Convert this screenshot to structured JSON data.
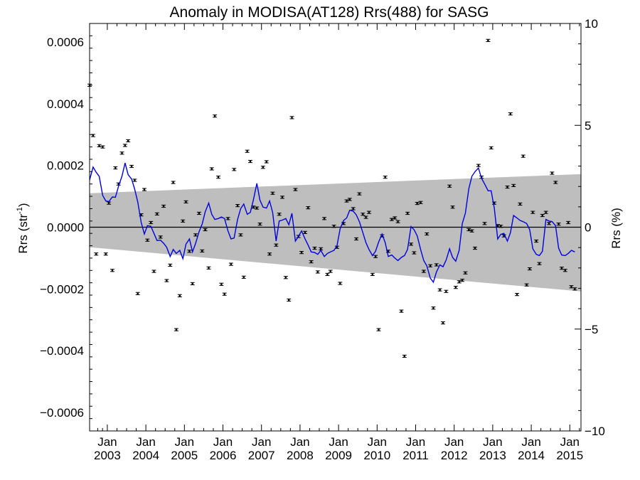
{
  "chart_data": {
    "type": "scatter",
    "title": "Anomaly in MODISA(AT128) Rrs(488) for SASG",
    "ylabel_left": "Rrs (str",
    "ylabel_left_sup": "-1",
    "ylabel_left_end": ")",
    "ylabel_right": "Rrs (%)",
    "x_tick_labels": [
      {
        "month": "Jan",
        "year": "2003",
        "t": 2003.0
      },
      {
        "month": "Jan",
        "year": "2004",
        "t": 2004.0
      },
      {
        "month": "Jan",
        "year": "2005",
        "t": 2005.0
      },
      {
        "month": "Jan",
        "year": "2006",
        "t": 2006.0
      },
      {
        "month": "Jan",
        "year": "2007",
        "t": 2007.0
      },
      {
        "month": "Jan",
        "year": "2008",
        "t": 2008.0
      },
      {
        "month": "Jan",
        "year": "2009",
        "t": 2009.0
      },
      {
        "month": "Jan",
        "year": "2010",
        "t": 2010.0
      },
      {
        "month": "Jan",
        "year": "2011",
        "t": 2011.0
      },
      {
        "month": "Jan",
        "year": "2012",
        "t": 2012.0
      },
      {
        "month": "Jan",
        "year": "2013",
        "t": 2013.0
      },
      {
        "month": "Jan",
        "year": "2014",
        "t": 2014.0
      },
      {
        "month": "Jan",
        "year": "2015",
        "t": 2015.0
      }
    ],
    "xlim": [
      2002.54,
      2015.29
    ],
    "ylim_left": [
      -0.00066,
      0.00066
    ],
    "ylim_right": [
      -10,
      10
    ],
    "y_ticks_left": [
      "0.0006",
      "0.0004",
      "0.0002",
      "0.0000",
      "−0.0002",
      "−0.0004",
      "−0.0006"
    ],
    "y_tick_values_left": [
      0.0006,
      0.0004,
      0.0002,
      0.0,
      -0.0002,
      -0.0004,
      -0.0006
    ],
    "y_ticks_right": [
      "10",
      "5",
      "0",
      "−5",
      "−10"
    ],
    "y_tick_values_right": [
      10,
      5,
      0,
      -5,
      -10
    ],
    "band": {
      "start": [
        2002.54,
        0.00011
      ],
      "end": [
        2015.29,
        0.000172
      ],
      "start_low": [
        2002.54,
        -6.5e-05
      ],
      "end_low": [
        2015.29,
        -0.000208
      ]
    },
    "colors": {
      "band": "#bebebe",
      "line": "#0000dd",
      "points": "#000000"
    },
    "points": [
      [
        2002.54,
        0.00046
      ],
      [
        2002.63,
        0.000297
      ],
      [
        2002.71,
        -8.7e-05
      ],
      [
        2002.79,
        0.000264
      ],
      [
        2002.88,
        0.00026
      ],
      [
        2002.96,
        -8.7e-05
      ],
      [
        2003.04,
        7.8e-05
      ],
      [
        2003.13,
        -0.00014
      ],
      [
        2003.21,
        0.000192
      ],
      [
        2003.29,
        0.00014
      ],
      [
        2003.38,
        0.00024
      ],
      [
        2003.46,
        0.000265
      ],
      [
        2003.54,
        0.00028
      ],
      [
        2003.63,
        0.000197
      ],
      [
        2003.71,
        0.000152
      ],
      [
        2003.79,
        -0.000215
      ],
      [
        2003.88,
        4e-05
      ],
      [
        2003.96,
        0.000122
      ],
      [
        2004.04,
        -4.2e-05
      ],
      [
        2004.13,
        1.5e-05
      ],
      [
        2004.21,
        -0.000143
      ],
      [
        2004.29,
        4.3e-05
      ],
      [
        2004.38,
        -3.2e-05
      ],
      [
        2004.46,
        6.8e-05
      ],
      [
        2004.54,
        -0.000173
      ],
      [
        2004.63,
        -0.000123
      ],
      [
        2004.71,
        0.000145
      ],
      [
        2004.79,
        -0.000332
      ],
      [
        2004.88,
        -0.000222
      ],
      [
        2004.96,
        2e-05
      ],
      [
        2005.04,
        8.2e-05
      ],
      [
        2005.13,
        -7.8e-05
      ],
      [
        2005.21,
        -0.000183
      ],
      [
        2005.29,
        -2.5e-05
      ],
      [
        2005.38,
        4.5e-05
      ],
      [
        2005.46,
        -7.7e-05
      ],
      [
        2005.54,
        -8e-06
      ],
      [
        2005.63,
        -0.000132
      ],
      [
        2005.71,
        0.000189
      ],
      [
        2005.79,
        0.00036
      ],
      [
        2005.88,
        0.000162
      ],
      [
        2005.96,
        -0.000185
      ],
      [
        2006.04,
        -0.000217
      ],
      [
        2006.13,
        2.8e-05
      ],
      [
        2006.21,
        -0.00012
      ],
      [
        2006.29,
        0.000187
      ],
      [
        2006.38,
        7e-05
      ],
      [
        2006.46,
        -2.5e-05
      ],
      [
        2006.54,
        -0.000162
      ],
      [
        2006.63,
        0.000246
      ],
      [
        2006.71,
        0.000213
      ],
      [
        2006.79,
        6.5e-05
      ],
      [
        2006.88,
        6.2e-05
      ],
      [
        2006.96,
        1e-05
      ],
      [
        2007.04,
        0.000194
      ],
      [
        2007.13,
        0.000212
      ],
      [
        2007.21,
        -8.7e-05
      ],
      [
        2007.29,
        0.00011
      ],
      [
        2007.38,
        -5.8e-05
      ],
      [
        2007.46,
        4.2e-05
      ],
      [
        2007.54,
        9.7e-05
      ],
      [
        2007.63,
        -0.000163
      ],
      [
        2007.71,
        -0.000236
      ],
      [
        2007.79,
        0.000355
      ],
      [
        2007.88,
        0.000122
      ],
      [
        2007.96,
        -3e-05
      ],
      [
        2008.04,
        -8.2e-05
      ],
      [
        2008.13,
        -1.7e-05
      ],
      [
        2008.21,
        6.3e-05
      ],
      [
        2008.29,
        -0.000112
      ],
      [
        2008.38,
        -6.8e-05
      ],
      [
        2008.46,
        -0.000145
      ],
      [
        2008.54,
        -7e-05
      ],
      [
        2008.63,
        2.8e-05
      ],
      [
        2008.71,
        -0.000153
      ],
      [
        2008.79,
        -0.000143
      ],
      [
        2008.88,
        3e-06
      ],
      [
        2008.96,
        -6.5e-05
      ],
      [
        2009.04,
        -0.000182
      ],
      [
        2009.13,
        1.2e-05
      ],
      [
        2009.21,
        8.5e-05
      ],
      [
        2009.29,
        9e-05
      ],
      [
        2009.38,
        6e-05
      ],
      [
        2009.46,
        -3.8e-05
      ],
      [
        2009.54,
        0.000108
      ],
      [
        2009.63,
        4.2e-05
      ],
      [
        2009.71,
        3.2e-05
      ],
      [
        2009.79,
        4.8e-05
      ],
      [
        2009.88,
        -0.000153
      ],
      [
        2009.96,
        -9.5e-05
      ],
      [
        2010.04,
        -0.000332
      ],
      [
        2010.13,
        -2.8e-05
      ],
      [
        2010.21,
        0.000162
      ],
      [
        2010.29,
        -7.8e-05
      ],
      [
        2010.38,
        2.5e-05
      ],
      [
        2010.46,
        3e-05
      ],
      [
        2010.54,
        1.8e-05
      ],
      [
        2010.63,
        -0.000272
      ],
      [
        2010.71,
        -0.000418
      ],
      [
        2010.79,
        4.5e-05
      ],
      [
        2010.88,
        -5.5e-05
      ],
      [
        2010.96,
        -8.3e-05
      ],
      [
        2011.04,
        7.7e-05
      ],
      [
        2011.13,
        8e-05
      ],
      [
        2011.21,
        -0.000143
      ],
      [
        2011.29,
        -2.2e-05
      ],
      [
        2011.38,
        -0.000125
      ],
      [
        2011.46,
        -0.000262
      ],
      [
        2011.54,
        -0.000122
      ],
      [
        2011.63,
        -0.000203
      ],
      [
        2011.71,
        -0.00031
      ],
      [
        2011.79,
        -0.000208
      ],
      [
        2011.88,
        0.000133
      ],
      [
        2011.96,
        6.5e-05
      ],
      [
        2012.04,
        -0.000195
      ],
      [
        2012.13,
        -0.000177
      ],
      [
        2012.21,
        -0.000172
      ],
      [
        2012.29,
        -0.000148
      ],
      [
        2012.38,
        -8e-06
      ],
      [
        2012.46,
        -1.2e-05
      ],
      [
        2012.54,
        -6.8e-05
      ],
      [
        2012.63,
        0.0002
      ],
      [
        2012.71,
        0.000162
      ],
      [
        2012.79,
        1.2e-05
      ],
      [
        2012.88,
        0.000605
      ],
      [
        2012.96,
        0.000257
      ],
      [
        2013.04,
        7.8e-05
      ],
      [
        2013.13,
        5e-06
      ],
      [
        2013.21,
        3e-06
      ],
      [
        2013.29,
        -2.8e-05
      ],
      [
        2013.38,
        0.00013
      ],
      [
        2013.46,
        0.000367
      ],
      [
        2013.54,
        0.000135
      ],
      [
        2013.63,
        -0.000218
      ],
      [
        2013.71,
        7.5e-05
      ],
      [
        2013.79,
        0.00023
      ],
      [
        2013.88,
        -0.000187
      ],
      [
        2013.96,
        -0.000135
      ],
      [
        2014.04,
        4.8e-05
      ],
      [
        2014.13,
        -4.5e-05
      ],
      [
        2014.21,
        -0.000118
      ],
      [
        2014.29,
        3.8e-05
      ],
      [
        2014.38,
        4.8e-05
      ],
      [
        2014.46,
        1.2e-05
      ],
      [
        2014.54,
        0.000175
      ],
      [
        2014.63,
        0.000145
      ],
      [
        2014.71,
        1e-05
      ],
      [
        2014.79,
        -0.000133
      ],
      [
        2014.88,
        -0.00014
      ],
      [
        2014.96,
        1.5e-05
      ],
      [
        2015.04,
        -0.000193
      ],
      [
        2015.13,
        -0.0002
      ]
    ],
    "line": [
      [
        2002.54,
        0.000153
      ],
      [
        2002.63,
        0.000195
      ],
      [
        2002.71,
        0.000178
      ],
      [
        2002.79,
        0.000165
      ],
      [
        2002.88,
        0.000103
      ],
      [
        2002.96,
        8.5e-05
      ],
      [
        2003.04,
        8.3e-05
      ],
      [
        2003.13,
        9.8e-05
      ],
      [
        2003.21,
        9.7e-05
      ],
      [
        2003.29,
        0.000132
      ],
      [
        2003.38,
        0.000165
      ],
      [
        2003.46,
        0.000208
      ],
      [
        2003.54,
        0.00017
      ],
      [
        2003.63,
        0.000156
      ],
      [
        2003.71,
        0.000123
      ],
      [
        2003.79,
        8.2e-05
      ],
      [
        2003.88,
        1.5e-05
      ],
      [
        2003.96,
        -2.2e-05
      ],
      [
        2004.04,
        5e-06
      ],
      [
        2004.13,
        3e-06
      ],
      [
        2004.21,
        -2e-05
      ],
      [
        2004.29,
        -4.3e-05
      ],
      [
        2004.38,
        -4.2e-05
      ],
      [
        2004.46,
        -5.2e-05
      ],
      [
        2004.54,
        -6.5e-05
      ],
      [
        2004.63,
        -9.5e-05
      ],
      [
        2004.71,
        -7.2e-05
      ],
      [
        2004.79,
        -8.5e-05
      ],
      [
        2004.88,
        -7.5e-05
      ],
      [
        2004.96,
        -0.000102
      ],
      [
        2005.04,
        -5.5e-05
      ],
      [
        2005.13,
        -3.8e-05
      ],
      [
        2005.21,
        -8e-05
      ],
      [
        2005.29,
        -5.3e-05
      ],
      [
        2005.38,
        -1.5e-05
      ],
      [
        2005.46,
        1e-05
      ],
      [
        2005.54,
        5e-05
      ],
      [
        2005.63,
        7.8e-05
      ],
      [
        2005.71,
        4.2e-05
      ],
      [
        2005.79,
        2.5e-05
      ],
      [
        2005.88,
        2.8e-05
      ],
      [
        2005.96,
        3.3e-05
      ],
      [
        2006.04,
        2.8e-05
      ],
      [
        2006.13,
        -1.2e-05
      ],
      [
        2006.21,
        -3.8e-05
      ],
      [
        2006.29,
        -3.5e-05
      ],
      [
        2006.38,
        2.5e-05
      ],
      [
        2006.46,
        6e-05
      ],
      [
        2006.54,
        7.5e-05
      ],
      [
        2006.63,
        4.2e-05
      ],
      [
        2006.71,
        4.8e-05
      ],
      [
        2006.79,
        8.8e-05
      ],
      [
        2006.88,
        0.000142
      ],
      [
        2006.96,
        8.8e-05
      ],
      [
        2007.04,
        6.5e-05
      ],
      [
        2007.13,
        6.2e-05
      ],
      [
        2007.21,
        8.5e-05
      ],
      [
        2007.29,
        4.8e-05
      ],
      [
        2007.38,
        -4.5e-05
      ],
      [
        2007.46,
        2e-05
      ],
      [
        2007.54,
        2.3e-05
      ],
      [
        2007.63,
        2.8e-05
      ],
      [
        2007.71,
        8e-06
      ],
      [
        2007.79,
        4.5e-05
      ],
      [
        2007.88,
        -4.5e-05
      ],
      [
        2007.96,
        -3e-05
      ],
      [
        2008.04,
        -1.2e-05
      ],
      [
        2008.13,
        -3.8e-05
      ],
      [
        2008.21,
        -5.8e-05
      ],
      [
        2008.29,
        -8e-05
      ],
      [
        2008.38,
        -8.2e-05
      ],
      [
        2008.46,
        -8.8e-05
      ],
      [
        2008.54,
        -7.5e-05
      ],
      [
        2008.63,
        -9.5e-05
      ],
      [
        2008.71,
        -8.5e-05
      ],
      [
        2008.79,
        -8e-05
      ],
      [
        2008.88,
        -7.5e-05
      ],
      [
        2008.96,
        -6e-05
      ],
      [
        2009.04,
        -5e-06
      ],
      [
        2009.13,
        2.2e-05
      ],
      [
        2009.21,
        3e-05
      ],
      [
        2009.29,
        5.5e-05
      ],
      [
        2009.38,
        5.2e-05
      ],
      [
        2009.46,
        4e-05
      ],
      [
        2009.54,
        1.8e-05
      ],
      [
        2009.63,
        -1.8e-05
      ],
      [
        2009.71,
        -5e-05
      ],
      [
        2009.79,
        -7.2e-05
      ],
      [
        2009.88,
        -9.2e-05
      ],
      [
        2009.96,
        -7.8e-05
      ],
      [
        2010.04,
        -4.8e-05
      ],
      [
        2010.13,
        -2.2e-05
      ],
      [
        2010.21,
        -5e-05
      ],
      [
        2010.29,
        -9.5e-05
      ],
      [
        2010.38,
        -9e-05
      ],
      [
        2010.46,
        -0.0001
      ],
      [
        2010.54,
        -0.000108
      ],
      [
        2010.63,
        -9.8e-05
      ],
      [
        2010.71,
        -9.2e-05
      ],
      [
        2010.79,
        -7.2e-05
      ],
      [
        2010.88,
        2e-06
      ],
      [
        2010.96,
        -8e-06
      ],
      [
        2011.04,
        -2.8e-05
      ],
      [
        2011.13,
        -7.2e-05
      ],
      [
        2011.21,
        -0.000108
      ],
      [
        2011.29,
        -0.000125
      ],
      [
        2011.38,
        -0.000165
      ],
      [
        2011.46,
        -0.000178
      ],
      [
        2011.54,
        -0.000145
      ],
      [
        2011.63,
        -0.000122
      ],
      [
        2011.71,
        -0.000128
      ],
      [
        2011.79,
        -0.000107
      ],
      [
        2011.88,
        -7e-05
      ],
      [
        2011.96,
        -9.8e-05
      ],
      [
        2012.04,
        -0.00011
      ],
      [
        2012.13,
        -7.5e-05
      ],
      [
        2012.21,
        1.2e-05
      ],
      [
        2012.29,
        4.5e-05
      ],
      [
        2012.38,
        0.000125
      ],
      [
        2012.46,
        0.000165
      ],
      [
        2012.54,
        0.00018
      ],
      [
        2012.63,
        0.000192
      ],
      [
        2012.71,
        0.000158
      ],
      [
        2012.79,
        0.00014
      ],
      [
        2012.88,
        0.000118
      ],
      [
        2012.96,
        0.000118
      ],
      [
        2013.04,
        6.2e-05
      ],
      [
        2013.13,
        -3.8e-05
      ],
      [
        2013.21,
        -2.3e-05
      ],
      [
        2013.29,
        -2e-05
      ],
      [
        2013.38,
        -4.5e-05
      ],
      [
        2013.46,
        -1.8e-05
      ],
      [
        2013.54,
        3.8e-05
      ],
      [
        2013.63,
        3e-05
      ],
      [
        2013.71,
        2.2e-05
      ],
      [
        2013.79,
        1.8e-05
      ],
      [
        2013.88,
        1.2e-05
      ],
      [
        2013.96,
        -8e-06
      ],
      [
        2014.04,
        -7e-05
      ],
      [
        2014.13,
        -8.8e-05
      ],
      [
        2014.21,
        -9.2e-05
      ],
      [
        2014.29,
        -7.8e-05
      ],
      [
        2014.38,
        2.5e-05
      ],
      [
        2014.46,
        2e-05
      ],
      [
        2014.54,
        1.8e-05
      ],
      [
        2014.63,
        5e-06
      ],
      [
        2014.71,
        -6.8e-05
      ],
      [
        2014.79,
        -9e-05
      ],
      [
        2014.88,
        -9.2e-05
      ],
      [
        2014.96,
        -8.5e-05
      ],
      [
        2015.04,
        -7.5e-05
      ],
      [
        2015.13,
        -8e-05
      ]
    ]
  }
}
